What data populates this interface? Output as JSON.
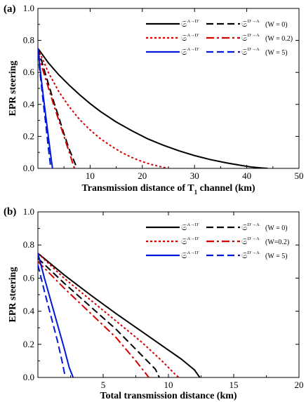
{
  "chart_data": [
    {
      "type": "line",
      "panel_label": "(a)",
      "xlabel_prefix": "Transmission distance of T",
      "xlabel_sub": "1",
      "xlabel_suffix": " channel (km)",
      "ylabel": "EPR steering",
      "xlim": [
        0,
        50
      ],
      "ylim": [
        0,
        1.0
      ],
      "xticks": [
        10,
        20,
        30,
        40,
        50
      ],
      "yticks": [
        0.0,
        0.2,
        0.4,
        0.6,
        0.8,
        1.0
      ],
      "ytick_labels": [
        "0.0",
        "0.2",
        "0.4",
        "0.6",
        "0.8",
        "1.0"
      ],
      "legend": [
        {
          "label_a": "𝔖",
          "sup_a": "A→D′",
          "label_b": "𝔖",
          "sup_b": "D′→A",
          "w": "(W = 0)",
          "color": "#000000"
        },
        {
          "label_a": "𝔖",
          "sup_a": "A→D′",
          "label_b": "𝔖",
          "sup_b": "D′→A",
          "w": "(W = 0.2)",
          "color": "#d40000"
        },
        {
          "label_a": "𝔖",
          "sup_a": "A→D′",
          "label_b": "𝔖",
          "sup_b": "D′→A",
          "w": "(W = 5)",
          "color": "#0018d8"
        }
      ],
      "series": [
        {
          "color": "#000000",
          "dash": "solid",
          "points": [
            [
              0,
              0.75
            ],
            [
              2,
              0.66
            ],
            [
              4,
              0.585
            ],
            [
              6,
              0.52
            ],
            [
              8,
              0.46
            ],
            [
              10,
              0.405
            ],
            [
              12,
              0.355
            ],
            [
              15,
              0.29
            ],
            [
              18,
              0.235
            ],
            [
              21,
              0.185
            ],
            [
              24,
              0.145
            ],
            [
              27,
              0.11
            ],
            [
              30,
              0.08
            ],
            [
              33,
              0.055
            ],
            [
              36,
              0.035
            ],
            [
              39,
              0.018
            ],
            [
              41,
              0.008
            ],
            [
              43,
              0.002
            ],
            [
              44,
              0.0
            ]
          ]
        },
        {
          "color": "#000000",
          "dash": "dash",
          "points": [
            [
              0,
              0.75
            ],
            [
              1,
              0.64
            ],
            [
              2,
              0.53
            ],
            [
              3,
              0.42
            ],
            [
              4,
              0.32
            ],
            [
              5,
              0.215
            ],
            [
              6,
              0.12
            ],
            [
              7,
              0.04
            ],
            [
              7.5,
              0.0
            ]
          ]
        },
        {
          "color": "#d40000",
          "dash": "dot",
          "points": [
            [
              0,
              0.75
            ],
            [
              2,
              0.6
            ],
            [
              4,
              0.48
            ],
            [
              6,
              0.385
            ],
            [
              8,
              0.305
            ],
            [
              10,
              0.24
            ],
            [
              12,
              0.185
            ],
            [
              14,
              0.14
            ],
            [
              16,
              0.1
            ],
            [
              18,
              0.068
            ],
            [
              20,
              0.042
            ],
            [
              22,
              0.022
            ],
            [
              24,
              0.007
            ],
            [
              25,
              0.0
            ]
          ]
        },
        {
          "color": "#d40000",
          "dash": "dashdot",
          "points": [
            [
              0,
              0.72
            ],
            [
              1,
              0.61
            ],
            [
              2,
              0.505
            ],
            [
              3,
              0.4
            ],
            [
              4,
              0.3
            ],
            [
              5,
              0.2
            ],
            [
              6,
              0.1
            ],
            [
              6.8,
              0.02
            ],
            [
              7,
              0.0
            ]
          ]
        },
        {
          "color": "#0018d8",
          "dash": "solid",
          "points": [
            [
              0,
              0.75
            ],
            [
              0.5,
              0.6
            ],
            [
              1,
              0.46
            ],
            [
              1.5,
              0.33
            ],
            [
              2,
              0.2
            ],
            [
              2.5,
              0.07
            ],
            [
              2.8,
              0.0
            ]
          ]
        },
        {
          "color": "#0018d8",
          "dash": "dash",
          "points": [
            [
              0,
              0.72
            ],
            [
              0.5,
              0.57
            ],
            [
              1,
              0.42
            ],
            [
              1.5,
              0.28
            ],
            [
              2,
              0.13
            ],
            [
              2.4,
              0.02
            ],
            [
              2.5,
              0.0
            ]
          ]
        }
      ]
    },
    {
      "type": "line",
      "panel_label": "(b)",
      "xlabel": "Total transmission distance (km)",
      "ylabel": "EPR steering",
      "xlim": [
        0,
        20
      ],
      "ylim": [
        0,
        1.0
      ],
      "xticks": [
        5,
        10,
        15,
        20
      ],
      "yticks": [
        0.0,
        0.2,
        0.4,
        0.6,
        0.8,
        1.0
      ],
      "ytick_labels": [
        "0.0",
        "0.2",
        "0.4",
        "0.6",
        "0.8",
        "1.0"
      ],
      "legend": [
        {
          "label_a": "𝔖",
          "sup_a": "A→D′",
          "label_b": "𝔖",
          "sup_b": "D′→A",
          "w": "(W = 0)",
          "color": "#000000"
        },
        {
          "label_a": "𝔖",
          "sup_a": "A→D′",
          "label_b": "𝔖",
          "sup_b": "D′→A",
          "w": "(W=0.2)",
          "color": "#d40000"
        },
        {
          "label_a": "𝔖",
          "sup_a": "A→D′",
          "label_b": "𝔖",
          "sup_b": "D′→A",
          "w": "(W = 5)",
          "color": "#0018d8"
        }
      ],
      "series": [
        {
          "color": "#000000",
          "dash": "solid",
          "points": [
            [
              0,
              0.75
            ],
            [
              2,
              0.62
            ],
            [
              4,
              0.5
            ],
            [
              6,
              0.385
            ],
            [
              8,
              0.275
            ],
            [
              10,
              0.165
            ],
            [
              11,
              0.11
            ],
            [
              12,
              0.045
            ],
            [
              12.4,
              0.0
            ]
          ]
        },
        {
          "color": "#000000",
          "dash": "dash",
          "points": [
            [
              0,
              0.72
            ],
            [
              2,
              0.57
            ],
            [
              4,
              0.43
            ],
            [
              6,
              0.29
            ],
            [
              8,
              0.13
            ],
            [
              9,
              0.05
            ],
            [
              9.3,
              0.0
            ]
          ]
        },
        {
          "color": "#d40000",
          "dash": "dot",
          "points": [
            [
              0,
              0.75
            ],
            [
              2,
              0.6
            ],
            [
              4,
              0.47
            ],
            [
              6,
              0.34
            ],
            [
              8,
              0.21
            ],
            [
              9.5,
              0.1
            ],
            [
              10.5,
              0.02
            ],
            [
              10.8,
              0.0
            ]
          ]
        },
        {
          "color": "#d40000",
          "dash": "dashdot",
          "points": [
            [
              0,
              0.7
            ],
            [
              2,
              0.54
            ],
            [
              4,
              0.39
            ],
            [
              6,
              0.24
            ],
            [
              7.5,
              0.1
            ],
            [
              8.5,
              0.0
            ]
          ]
        },
        {
          "color": "#0018d8",
          "dash": "solid",
          "points": [
            [
              0,
              0.75
            ],
            [
              0.5,
              0.6
            ],
            [
              1,
              0.46
            ],
            [
              1.5,
              0.32
            ],
            [
              2,
              0.18
            ],
            [
              2.4,
              0.06
            ],
            [
              2.7,
              0.0
            ]
          ]
        },
        {
          "color": "#0018d8",
          "dash": "dash",
          "points": [
            [
              0,
              0.68
            ],
            [
              0.5,
              0.52
            ],
            [
              1,
              0.37
            ],
            [
              1.5,
              0.22
            ],
            [
              1.9,
              0.08
            ],
            [
              2.1,
              0.0
            ]
          ]
        }
      ]
    }
  ]
}
